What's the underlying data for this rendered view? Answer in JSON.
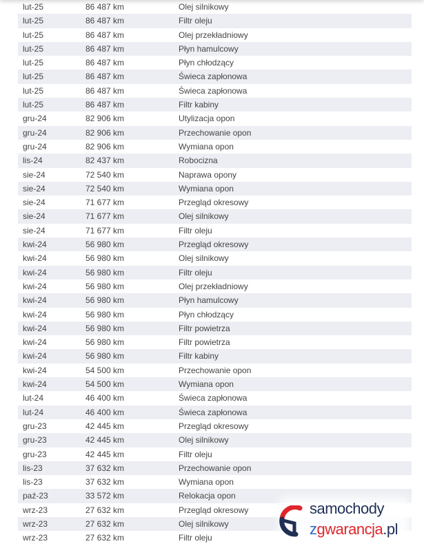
{
  "rows": [
    [
      "lut-25",
      "86 487 km",
      "Olej silnikowy"
    ],
    [
      "lut-25",
      "86 487 km",
      "Filtr oleju"
    ],
    [
      "lut-25",
      "86 487 km",
      "Olej przekładniowy"
    ],
    [
      "lut-25",
      "86 487 km",
      "Płyn hamulcowy"
    ],
    [
      "lut-25",
      "86 487 km",
      "Płyn chłodzący"
    ],
    [
      "lut-25",
      "86 487 km",
      "Świeca zapłonowa"
    ],
    [
      "lut-25",
      "86 487 km",
      "Świeca zapłonowa"
    ],
    [
      "lut-25",
      "86 487 km",
      "Filtr kabiny"
    ],
    [
      "gru-24",
      "82 906 km",
      "Utylizacja opon"
    ],
    [
      "gru-24",
      "82 906 km",
      "Przechowanie opon"
    ],
    [
      "gru-24",
      "82 906 km",
      "Wymiana opon"
    ],
    [
      "lis-24",
      "82 437 km",
      "Robocizna"
    ],
    [
      "sie-24",
      "72 540 km",
      "Naprawa opony"
    ],
    [
      "sie-24",
      "72 540 km",
      "Wymiana opon"
    ],
    [
      "sie-24",
      "71 677 km",
      "Przegląd okresowy"
    ],
    [
      "sie-24",
      "71 677 km",
      "Olej silnikowy"
    ],
    [
      "sie-24",
      "71 677 km",
      "Filtr oleju"
    ],
    [
      "kwi-24",
      "56 980 km",
      "Przegląd okresowy"
    ],
    [
      "kwi-24",
      "56 980 km",
      "Olej silnikowy"
    ],
    [
      "kwi-24",
      "56 980 km",
      "Filtr oleju"
    ],
    [
      "kwi-24",
      "56 980 km",
      "Olej przekładniowy"
    ],
    [
      "kwi-24",
      "56 980 km",
      "Płyn hamulcowy"
    ],
    [
      "kwi-24",
      "56 980 km",
      "Płyn chłodzący"
    ],
    [
      "kwi-24",
      "56 980 km",
      "Filtr powietrza"
    ],
    [
      "kwi-24",
      "56 980 km",
      "Filtr powietrza"
    ],
    [
      "kwi-24",
      "56 980 km",
      "Filtr kabiny"
    ],
    [
      "kwi-24",
      "54 500 km",
      "Przechowanie opon"
    ],
    [
      "kwi-24",
      "54 500 km",
      "Wymiana opon"
    ],
    [
      "lut-24",
      "46 400 km",
      "Świeca zapłonowa"
    ],
    [
      "lut-24",
      "46 400 km",
      "Świeca zapłonowa"
    ],
    [
      "gru-23",
      "42 445 km",
      "Przegląd okresowy"
    ],
    [
      "gru-23",
      "42 445 km",
      "Olej silnikowy"
    ],
    [
      "gru-23",
      "42 445 km",
      "Filtr oleju"
    ],
    [
      "lis-23",
      "37 632 km",
      "Przechowanie opon"
    ],
    [
      "lis-23",
      "37 632 km",
      "Wymiana opon"
    ],
    [
      "paź-23",
      "33 572 km",
      "Relokacja opon"
    ],
    [
      "wrz-23",
      "27 632 km",
      "Przegląd okresowy"
    ],
    [
      "wrz-23",
      "27 632 km",
      "Olej silnikowy"
    ],
    [
      "wrz-23",
      "27 632 km",
      "Filtr oleju"
    ]
  ],
  "logo": {
    "part1": "samochody",
    "part2_z": "z",
    "part2_main": "gwarancja",
    "part2_tld": ".pl"
  },
  "colors": {
    "stripe": "#eceef3",
    "text": "#444444",
    "logo_red": "#e0262b",
    "logo_navy": "#1f2f55",
    "logo_blue": "#2b66c4"
  }
}
